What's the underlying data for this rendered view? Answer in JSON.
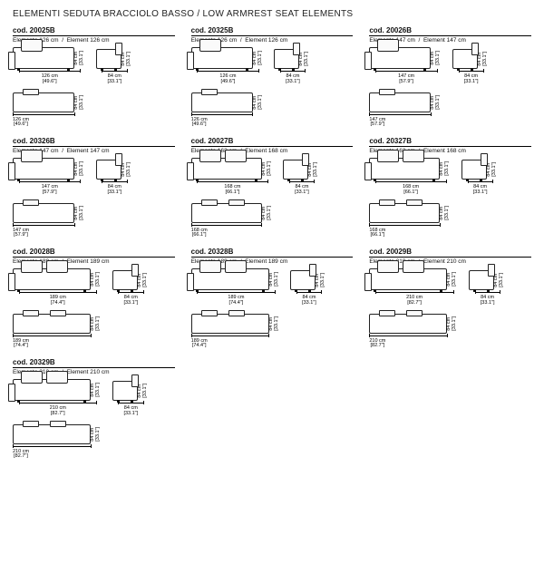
{
  "section_title": "ELEMENTI SEDUTA BRACCIOLO BASSO / LOW ARMREST SEAT ELEMENTS",
  "depth": {
    "cm": "84 cm",
    "in": "[33.1\"]"
  },
  "height": {
    "cm": "84 cm",
    "in": "[33.1\"]"
  },
  "items": [
    {
      "code": "cod. 20025B",
      "elem_it": "Elemento 126 cm",
      "elem_en": "Element 126 cm",
      "w_cm": "126 cm",
      "w_in": "[49.6\"]",
      "cushions": 1,
      "size": "n"
    },
    {
      "code": "cod. 20325B",
      "elem_it": "Elemento 126 cm",
      "elem_en": "Element 126 cm",
      "w_cm": "126 cm",
      "w_in": "[49.6\"]",
      "cushions": 1,
      "size": "n"
    },
    {
      "code": "cod. 20026B",
      "elem_it": "Elemento 147 cm",
      "elem_en": "Element 147 cm",
      "w_cm": "147 cm",
      "w_in": "[57.9\"]",
      "cushions": 1,
      "size": "n"
    },
    {
      "code": "cod. 20326B",
      "elem_it": "Elemento 147 cm",
      "elem_en": "Element 147 cm",
      "w_cm": "147 cm",
      "w_in": "[57.9\"]",
      "cushions": 1,
      "size": "n"
    },
    {
      "code": "cod. 20027B",
      "elem_it": "Elemento 168 cm",
      "elem_en": "Element 168 cm",
      "w_cm": "168 cm",
      "w_in": "[66.1\"]",
      "cushions": 2,
      "size": "w"
    },
    {
      "code": "cod. 20327B",
      "elem_it": "Elemento 168 cm",
      "elem_en": "Element 168 cm",
      "w_cm": "168 cm",
      "w_in": "[66.1\"]",
      "cushions": 2,
      "size": "w"
    },
    {
      "code": "cod. 20028B",
      "elem_it": "Elemento 189 cm",
      "elem_en": "Element 189 cm",
      "w_cm": "189 cm",
      "w_in": "[74.4\"]",
      "cushions": 2,
      "size": "wr"
    },
    {
      "code": "cod. 20328B",
      "elem_it": "Elemento 189 cm",
      "elem_en": "Element 189 cm",
      "w_cm": "189 cm",
      "w_in": "[74.4\"]",
      "cushions": 2,
      "size": "wr"
    },
    {
      "code": "cod. 20029B",
      "elem_it": "Elemento 210 cm",
      "elem_en": "Element 210 cm",
      "w_cm": "210 cm",
      "w_in": "[82.7\"]",
      "cushions": 2,
      "size": "wr"
    },
    {
      "code": "cod. 20329B",
      "elem_it": "Elemento 210 cm",
      "elem_en": "Element 210 cm",
      "w_cm": "210 cm",
      "w_in": "[82.7\"]",
      "cushions": 2,
      "size": "wr"
    }
  ]
}
